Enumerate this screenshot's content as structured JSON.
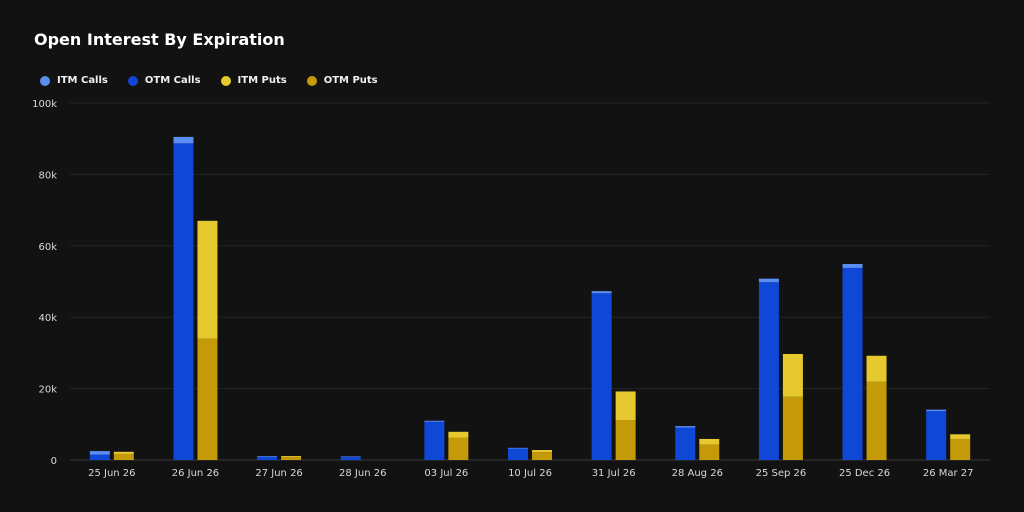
{
  "chart_data": {
    "type": "bar",
    "title": "Open Interest By Expiration",
    "xlabel": "",
    "ylabel": "",
    "ylim": [
      0,
      100000
    ],
    "yticks": [
      0,
      20000,
      40000,
      60000,
      80000,
      100000
    ],
    "ytick_labels": [
      "0",
      "20k",
      "40k",
      "60k",
      "80k",
      "100k"
    ],
    "categories": [
      "25 Jun 26",
      "26 Jun 26",
      "27 Jun 26",
      "28 Jun 26",
      "03 Jul 26",
      "10 Jul 26",
      "31 Jul 26",
      "28 Aug 26",
      "25 Sep 26",
      "25 Dec 26",
      "26 Mar 27"
    ],
    "stacks": [
      {
        "stack": "calls",
        "series": [
          "OTM Calls",
          "ITM Calls"
        ]
      },
      {
        "stack": "puts",
        "series": [
          "OTM Puts",
          "ITM Puts"
        ]
      }
    ],
    "series": [
      {
        "name": "ITM Calls",
        "color": "#5b8df2",
        "values": [
          1000,
          1800,
          200,
          150,
          300,
          200,
          600,
          400,
          1000,
          1100,
          400
        ]
      },
      {
        "name": "OTM Calls",
        "color": "#0f47d6",
        "values": [
          1500,
          88700,
          900,
          850,
          10700,
          3200,
          46700,
          9100,
          49800,
          53800,
          13700
        ]
      },
      {
        "name": "ITM Puts",
        "color": "#e6c92e",
        "values": [
          600,
          33000,
          300,
          0,
          1600,
          600,
          8000,
          1600,
          12000,
          7300,
          1300
        ]
      },
      {
        "name": "OTM Puts",
        "color": "#c59a08",
        "values": [
          1700,
          34000,
          800,
          0,
          6300,
          2200,
          11200,
          4300,
          17700,
          21900,
          5900
        ]
      }
    ],
    "legend": "top-left",
    "grid": true
  }
}
